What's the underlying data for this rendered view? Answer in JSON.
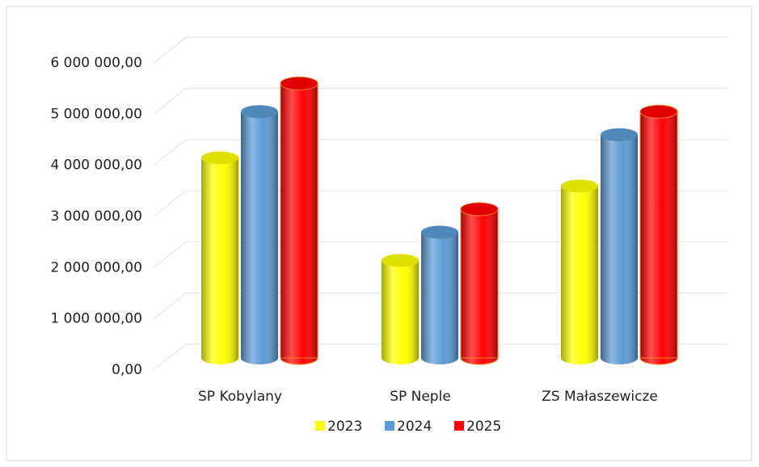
{
  "chart_data": {
    "type": "bar3d",
    "categories": [
      "SP Kobylany",
      "SP Neple",
      "ZS Małaszewicze"
    ],
    "series": [
      {
        "name": "2023",
        "color": "#ffff00",
        "values": [
          3900000,
          1900000,
          3350000
        ]
      },
      {
        "name": "2024",
        "color": "#5b9bd5",
        "values": [
          4800000,
          2450000,
          4350000
        ]
      },
      {
        "name": "2025",
        "color": "#ff0000",
        "values": [
          5350000,
          2900000,
          4800000
        ]
      }
    ],
    "ylim": [
      0,
      6000000
    ],
    "yticks": [
      {
        "value": 0,
        "label": "0,00"
      },
      {
        "value": 1000000,
        "label": "1 000 000,00"
      },
      {
        "value": 2000000,
        "label": "2 000 000,00"
      },
      {
        "value": 3000000,
        "label": "3 000 000,00"
      },
      {
        "value": 4000000,
        "label": "4 000 000,00"
      },
      {
        "value": 5000000,
        "label": "5 000 000,00"
      },
      {
        "value": 6000000,
        "label": "6 000 000,00"
      }
    ],
    "grid": true,
    "legend": "bottom"
  }
}
